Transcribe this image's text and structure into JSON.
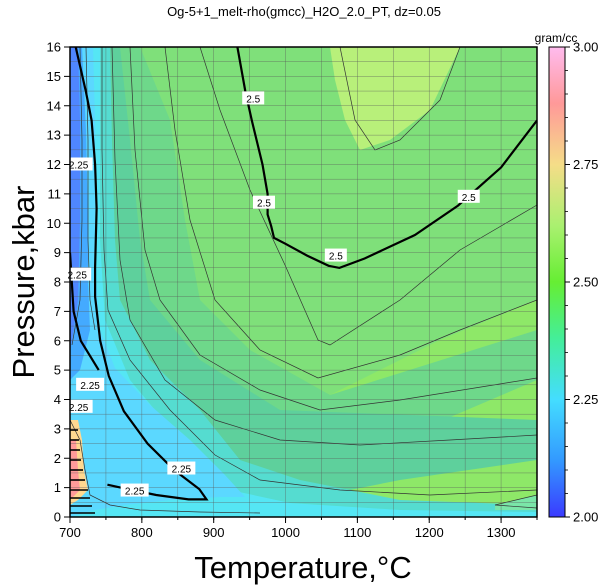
{
  "chart_data": {
    "type": "heatmap",
    "title": "Og-5+1_melt-rho(gmcc)_H2O_2.0_PT, dz=0.05",
    "xlabel": "Temperature,°C",
    "ylabel": "Pressure,kbar",
    "xlim": [
      700,
      1350
    ],
    "ylim": [
      0,
      16
    ],
    "x_ticks": [
      "700",
      "800",
      "900",
      "1000",
      "1100",
      "1200",
      "1300"
    ],
    "y_ticks": [
      "0",
      "1",
      "2",
      "3",
      "4",
      "5",
      "6",
      "7",
      "8",
      "9",
      "10",
      "11",
      "12",
      "13",
      "14",
      "15",
      "16"
    ],
    "grid": true,
    "contour_interval": 0.05,
    "colorbar": {
      "unit": "gram/cc",
      "range": [
        2.0,
        3.0
      ],
      "ticks": [
        "2.00",
        "2.25",
        "2.50",
        "2.75",
        "3.00"
      ],
      "colors": [
        "#3a3aff",
        "#3399ff",
        "#44ddff",
        "#44ee99",
        "#66ee33",
        "#aaf070",
        "#f5dd88",
        "#ff9999",
        "#ffbbee"
      ]
    },
    "contour_labels": [
      {
        "text": "2.25",
        "x": 712,
        "y": 3.75
      },
      {
        "text": "2.25",
        "x": 712,
        "y": 12.0
      },
      {
        "text": "2.25",
        "x": 710,
        "y": 8.25
      },
      {
        "text": "2.25",
        "x": 728,
        "y": 4.5
      },
      {
        "text": "2.25",
        "x": 855,
        "y": 1.65
      },
      {
        "text": "2.25",
        "x": 790,
        "y": 0.9
      },
      {
        "text": "2.5",
        "x": 955,
        "y": 14.25
      },
      {
        "text": "2.5",
        "x": 970,
        "y": 10.7
      },
      {
        "text": "2.5",
        "x": 1070,
        "y": 8.9
      },
      {
        "text": "2.5",
        "x": 1255,
        "y": 10.9
      }
    ],
    "contours_2_25": [
      {
        "points": [
          [
            700,
            3.95
          ],
          [
            703,
            3.82
          ],
          [
            707,
            3.75
          ],
          [
            712,
            3.72
          ]
        ]
      },
      {
        "points": [
          [
            708,
            16
          ],
          [
            722,
            14.5
          ],
          [
            730,
            13.5
          ],
          [
            735,
            12.0
          ],
          [
            737,
            10.5
          ],
          [
            735,
            8.5
          ],
          [
            735,
            7.5
          ],
          [
            742,
            6.0
          ],
          [
            754,
            4.8
          ],
          [
            775,
            3.6
          ],
          [
            808,
            2.5
          ],
          [
            845,
            1.6
          ],
          [
            880,
            0.95
          ],
          [
            890,
            0.6
          ],
          [
            865,
            0.6
          ],
          [
            820,
            0.75
          ],
          [
            780,
            0.95
          ],
          [
            752,
            1.1
          ]
        ]
      },
      {
        "points": [
          [
            700,
            9.0
          ],
          [
            705,
            7.0
          ],
          [
            715,
            6.0
          ],
          [
            740,
            5.0
          ]
        ]
      }
    ],
    "contours_2_5": [
      {
        "points": [
          [
            933,
            16
          ],
          [
            944,
            14.5
          ],
          [
            953,
            13.5
          ],
          [
            968,
            12.0
          ],
          [
            975,
            11.0
          ],
          [
            975,
            10.3
          ],
          [
            980,
            9.9
          ],
          [
            984,
            9.5
          ],
          [
            1000,
            9.3
          ],
          [
            1030,
            8.9
          ],
          [
            1060,
            8.55
          ],
          [
            1075,
            8.48
          ],
          [
            1110,
            8.8
          ],
          [
            1180,
            9.6
          ],
          [
            1240,
            10.6
          ],
          [
            1300,
            11.9
          ],
          [
            1350,
            13.5
          ]
        ]
      }
    ]
  }
}
